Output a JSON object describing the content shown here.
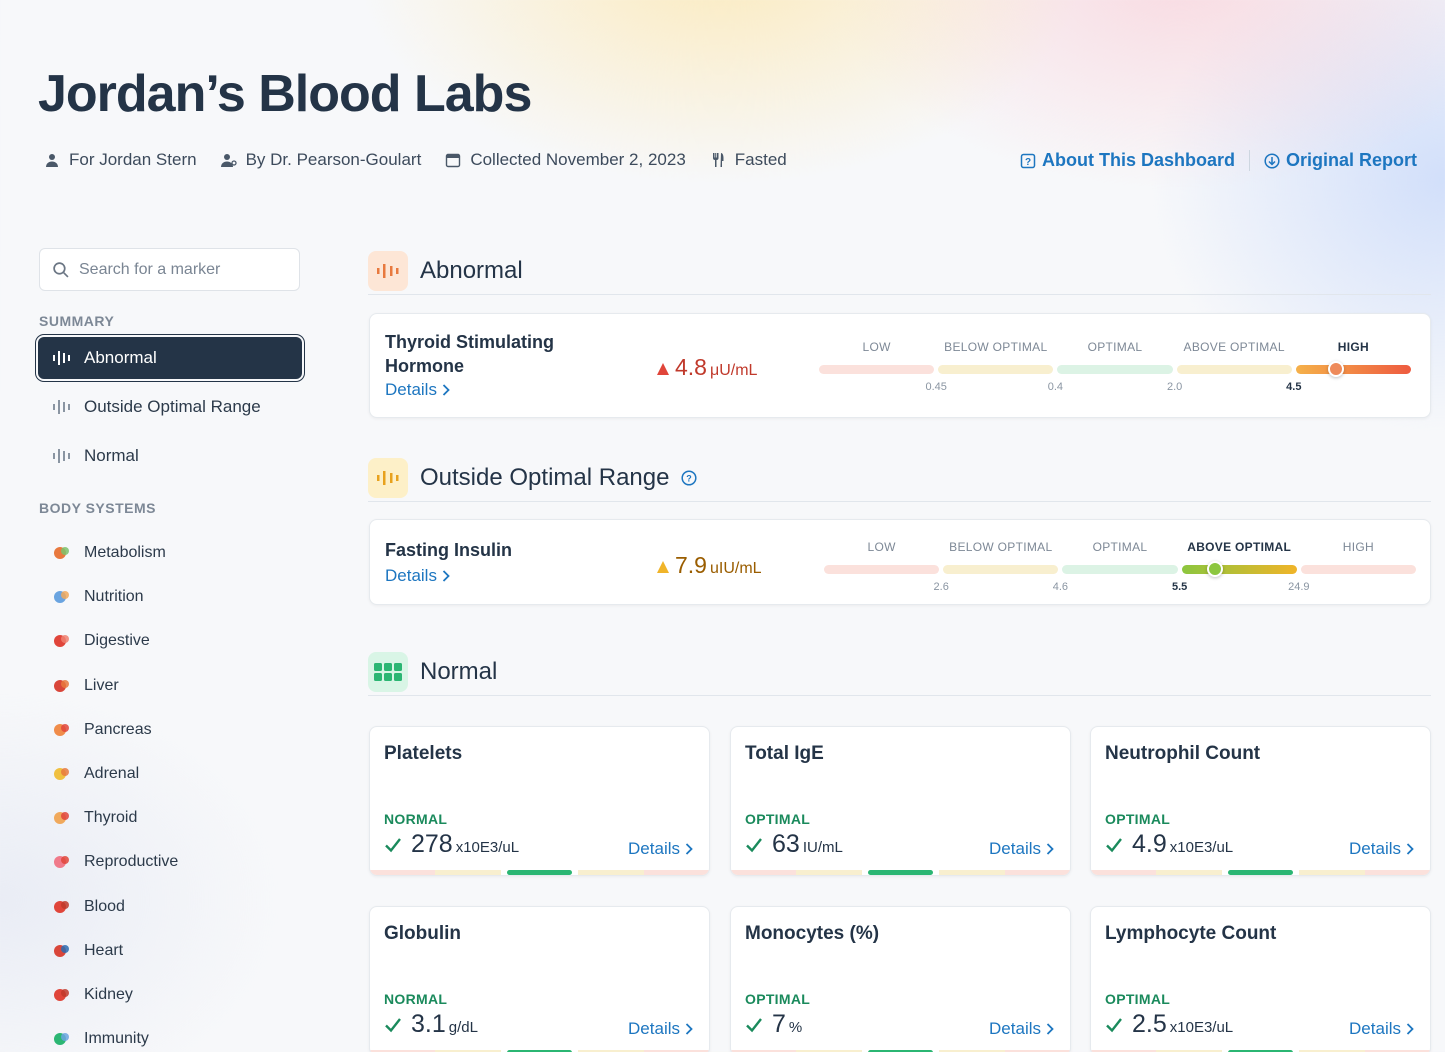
{
  "header": {
    "title": "Jordan’s Blood Labs",
    "meta": {
      "for": "For Jordan Stern",
      "by": "By Dr. Pearson-Goulart",
      "collected": "Collected November 2, 2023",
      "fasting": "Fasted"
    },
    "links": {
      "about": "About This Dashboard",
      "report": "Original Report"
    }
  },
  "sidebar": {
    "search_placeholder": "Search for a marker",
    "summary_heading": "SUMMARY",
    "summary_items": [
      "Abnormal",
      "Outside Optimal Range",
      "Normal"
    ],
    "systems_heading": "BODY SYSTEMS",
    "systems": [
      {
        "label": "Metabolism",
        "icon": "metabolism-icon"
      },
      {
        "label": "Nutrition",
        "icon": "nutrition-icon"
      },
      {
        "label": "Digestive",
        "icon": "digestive-icon"
      },
      {
        "label": "Liver",
        "icon": "liver-icon"
      },
      {
        "label": "Pancreas",
        "icon": "pancreas-icon"
      },
      {
        "label": "Adrenal",
        "icon": "adrenal-icon"
      },
      {
        "label": "Thyroid",
        "icon": "thyroid-icon"
      },
      {
        "label": "Reproductive",
        "icon": "reproductive-icon"
      },
      {
        "label": "Blood",
        "icon": "blood-icon"
      },
      {
        "label": "Heart",
        "icon": "heart-icon"
      },
      {
        "label": "Kidney",
        "icon": "kidney-icon"
      },
      {
        "label": "Immunity",
        "icon": "immunity-icon"
      }
    ]
  },
  "sections": {
    "abnormal": "Abnormal",
    "outside": "Outside Optimal Range",
    "normal": "Normal"
  },
  "range_labels": [
    "LOW",
    "BELOW OPTIMAL",
    "OPTIMAL",
    "ABOVE OPTIMAL",
    "HIGH"
  ],
  "details_label": "Details",
  "abnormal_markers": [
    {
      "name": "Thyroid Stimulating Hormone",
      "value": "4.8",
      "unit": "μU/mL",
      "active_segment": 4,
      "ticks": [
        "0.45",
        "0.4",
        "2.0",
        "4.5"
      ],
      "active_tick": 3,
      "marker_position": 0.87
    }
  ],
  "outside_markers": [
    {
      "name": "Fasting Insulin",
      "value": "7.9",
      "unit": "uIU/mL",
      "active_segment": 3,
      "ticks": [
        "2.6",
        "4.6",
        "5.5",
        "24.9"
      ],
      "active_tick": 2,
      "marker_position": 0.66
    }
  ],
  "normal_markers": [
    {
      "name": "Platelets",
      "status": "NORMAL",
      "value": "278",
      "unit": "x10E3/uL"
    },
    {
      "name": "Total IgE",
      "status": "OPTIMAL",
      "value": "63",
      "unit": "IU/mL"
    },
    {
      "name": "Neutrophil Count",
      "status": "OPTIMAL",
      "value": "4.9",
      "unit": "x10E3/uL"
    },
    {
      "name": "Globulin",
      "status": "NORMAL",
      "value": "3.1",
      "unit": "g/dL"
    },
    {
      "name": "Monocytes (%)",
      "status": "OPTIMAL",
      "value": "7",
      "unit": "%"
    },
    {
      "name": "Lymphocyte Count",
      "status": "OPTIMAL",
      "value": "2.5",
      "unit": "x10E3/uL"
    }
  ],
  "colors": {
    "accent": "#1d76c0",
    "navy": "#243447",
    "high": "#e0453a",
    "above": "#f0b429",
    "optimal": "#2bb673"
  }
}
